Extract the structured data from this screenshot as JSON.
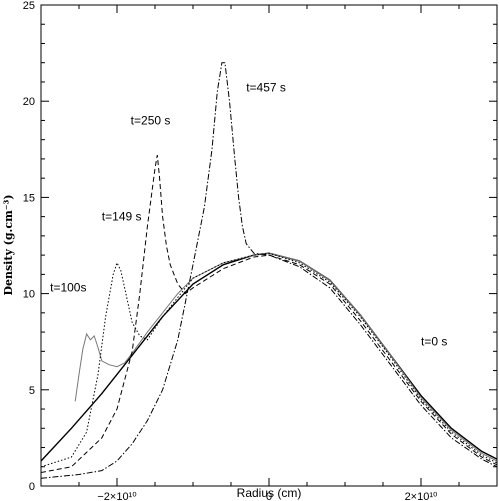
{
  "chart_data": {
    "type": "line",
    "xlabel": "Radius (cm)",
    "ylabel": "Density (g.cm⁻³)",
    "xlim": [
      -30000000000.0,
      30000000000.0
    ],
    "ylim": [
      0,
      25
    ],
    "x_ticks": [
      {
        "value": -20000000000.0,
        "label": "−2×10¹⁰"
      },
      {
        "value": 0,
        "label": "0"
      },
      {
        "value": 20000000000.0,
        "label": "2×10¹⁰"
      }
    ],
    "y_ticks": [
      {
        "value": 0,
        "label": "0"
      },
      {
        "value": 5,
        "label": "5"
      },
      {
        "value": 10,
        "label": "10"
      },
      {
        "value": 15,
        "label": "15"
      },
      {
        "value": 20,
        "label": "20"
      },
      {
        "value": 25,
        "label": "25"
      }
    ],
    "grid": false,
    "series": [
      {
        "name": "t=0 s",
        "style": "solid",
        "color": "#000000",
        "x": [
          -30000000000.0,
          -26000000000.0,
          -22000000000.0,
          -18000000000.0,
          -14000000000.0,
          -10000000000.0,
          -6000000000.0,
          -2000000000.0,
          0.0,
          4000000000.0,
          8000000000.0,
          12000000000.0,
          16000000000.0,
          20000000000.0,
          24000000000.0,
          28000000000.0,
          30000000000.0
        ],
        "y": [
          1.3,
          3.0,
          4.8,
          6.8,
          8.8,
          10.5,
          11.5,
          12.0,
          12.1,
          11.7,
          10.7,
          8.9,
          6.8,
          4.7,
          3.0,
          1.8,
          1.4
        ]
      },
      {
        "name": "t=100s",
        "style": "solid",
        "color": "#777777",
        "x": [
          -25500000000.0,
          -25000000000.0,
          -24500000000.0,
          -24000000000.0,
          -23500000000.0,
          -23000000000.0,
          -22500000000.0,
          -22000000000.0,
          -21000000000.0,
          -20000000000.0,
          -19000000000.0,
          -18000000000.0,
          -16000000000.0,
          -14000000000.0,
          -12000000000.0,
          -10000000000.0,
          -6000000000.0,
          -2000000000.0,
          0.0,
          4000000000.0,
          8000000000.0,
          12000000000.0,
          16000000000.0,
          20000000000.0,
          24000000000.0,
          28000000000.0,
          30000000000.0
        ],
        "y": [
          4.4,
          5.8,
          7.1,
          7.9,
          7.6,
          7.8,
          7.2,
          6.5,
          6.3,
          6.2,
          6.4,
          6.9,
          8.0,
          9.0,
          10.0,
          10.8,
          11.6,
          12.0,
          12.1,
          11.7,
          10.7,
          8.9,
          6.8,
          4.6,
          2.9,
          1.7,
          1.3
        ]
      },
      {
        "name": "t=149 s",
        "style": "dotted",
        "color": "#000000",
        "x": [
          -30000000000.0,
          -26000000000.0,
          -24000000000.0,
          -22500000000.0,
          -21500000000.0,
          -20500000000.0,
          -20000000000.0,
          -19500000000.0,
          -19000000000.0,
          -18000000000.0,
          -17000000000.0,
          -16000000000.0,
          -14000000000.0,
          -12000000000.0,
          -10000000000.0,
          -6000000000.0,
          -2000000000.0,
          0.0,
          4000000000.0,
          8000000000.0,
          12000000000.0,
          16000000000.0,
          20000000000.0,
          24000000000.0,
          28000000000.0,
          30000000000.0
        ],
        "y": [
          1.0,
          1.5,
          2.8,
          5.8,
          8.8,
          11.0,
          11.6,
          11.2,
          10.3,
          8.5,
          7.8,
          7.6,
          8.8,
          9.8,
          10.8,
          11.6,
          12.0,
          12.1,
          11.6,
          10.6,
          8.8,
          6.7,
          4.5,
          2.8,
          1.6,
          1.2
        ]
      },
      {
        "name": "t=250 s",
        "style": "dashed",
        "color": "#000000",
        "x": [
          -30000000000.0,
          -26000000000.0,
          -22000000000.0,
          -20000000000.0,
          -18000000000.0,
          -17000000000.0,
          -16000000000.0,
          -15500000000.0,
          -15000000000.0,
          -14700000000.0,
          -14400000000.0,
          -14000000000.0,
          -13500000000.0,
          -13000000000.0,
          -12000000000.0,
          -11000000000.0,
          -10000000000.0,
          -6000000000.0,
          -2000000000.0,
          0.0,
          4000000000.0,
          8000000000.0,
          12000000000.0,
          16000000000.0,
          20000000000.0,
          24000000000.0,
          28000000000.0,
          30000000000.0
        ],
        "y": [
          0.7,
          1.0,
          2.5,
          4.0,
          7.0,
          10.0,
          13.5,
          15.0,
          16.5,
          17.2,
          16.0,
          14.0,
          12.5,
          11.5,
          10.5,
          10.0,
          10.3,
          11.3,
          11.9,
          12.0,
          11.5,
          10.5,
          8.6,
          6.5,
          4.4,
          2.7,
          1.5,
          1.1
        ]
      },
      {
        "name": "t=457 s",
        "style": "dotdash",
        "color": "#000000",
        "x": [
          -30000000000.0,
          -25000000000.0,
          -22000000000.0,
          -20000000000.0,
          -18000000000.0,
          -16000000000.0,
          -14000000000.0,
          -12000000000.0,
          -10000000000.0,
          -8500000000.0,
          -7500000000.0,
          -6800000000.0,
          -6200000000.0,
          -5800000000.0,
          -5200000000.0,
          -4500000000.0,
          -4000000000.0,
          -3500000000.0,
          -3000000000.0,
          -2000000000.0,
          0.0,
          4000000000.0,
          8000000000.0,
          12000000000.0,
          16000000000.0,
          20000000000.0,
          24000000000.0,
          28000000000.0,
          30000000000.0
        ],
        "y": [
          0.4,
          0.6,
          0.8,
          1.3,
          2.2,
          3.4,
          5.0,
          7.6,
          11.5,
          14.5,
          17.5,
          20.5,
          22.0,
          22.0,
          20.0,
          17.0,
          15.0,
          13.5,
          12.6,
          12.1,
          12.0,
          11.4,
          10.3,
          8.4,
          6.3,
          4.2,
          2.5,
          1.4,
          1.0
        ]
      }
    ],
    "annotations": [
      {
        "text": "t=100s",
        "x": -28800000000.0,
        "y": 10.1
      },
      {
        "text": "t=149 s",
        "x": -22000000000.0,
        "y": 13.8
      },
      {
        "text": "t=250 s",
        "x": -18200000000.0,
        "y": 18.8
      },
      {
        "text": "t=457 s",
        "x": -3000000000.0,
        "y": 20.5
      },
      {
        "text": "t=0 s",
        "x": 20000000000.0,
        "y": 7.3
      }
    ]
  }
}
